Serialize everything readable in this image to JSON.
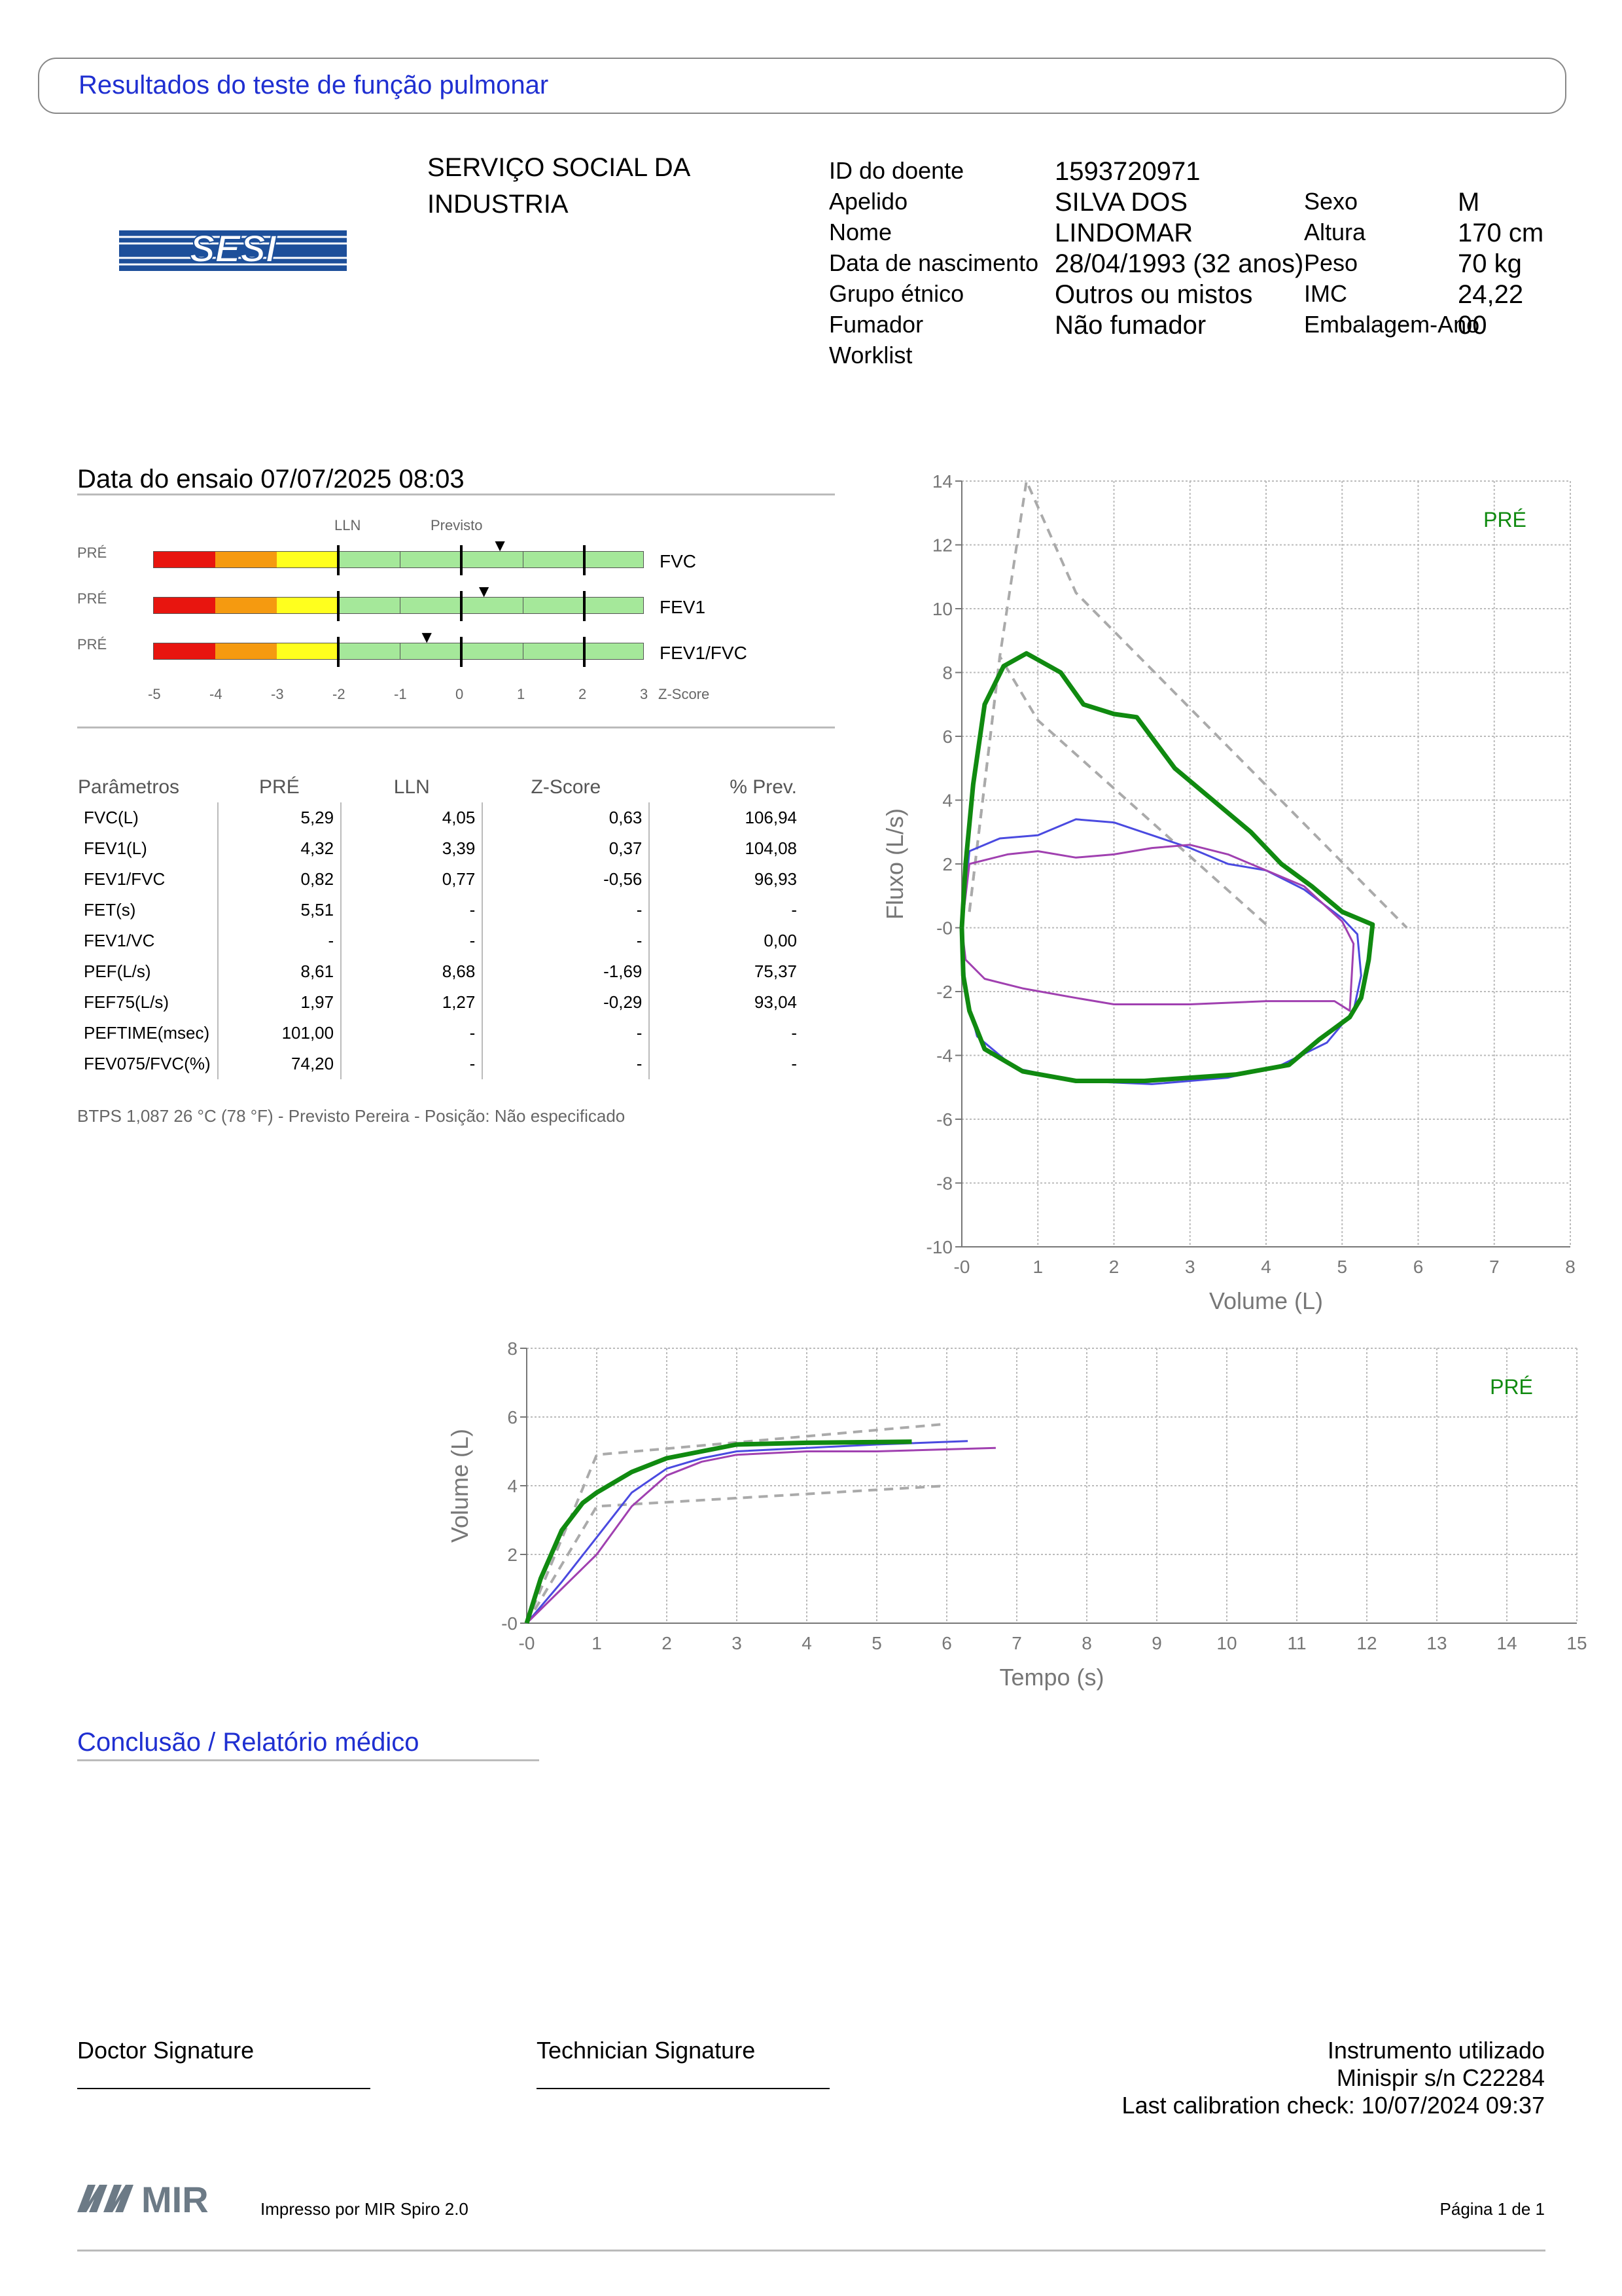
{
  "header": {
    "title": "Resultados do teste de função pulmonar"
  },
  "logo": {
    "text": "SESI",
    "color": "#1d4f9a"
  },
  "organization": {
    "line1": "SERVIÇO SOCIAL DA",
    "line2": "INDUSTRIA"
  },
  "patient": {
    "id_label": "ID do doente",
    "id": "1593720971",
    "surname_label": "Apelido",
    "surname": "SILVA DOS",
    "name_label": "Nome",
    "name": "LINDOMAR",
    "dob_label": "Data de nascimento",
    "dob": "28/04/1993 (32 anos)",
    "ethnic_label": "Grupo étnico",
    "ethnic": "Outros ou mistos",
    "smoker_label": "Fumador",
    "smoker": "Não fumador",
    "worklist_label": "Worklist",
    "sex_label": "Sexo",
    "sex": "M",
    "height_label": "Altura",
    "height": "170 cm",
    "weight_label": "Peso",
    "weight": "70 kg",
    "bmi_label": "IMC",
    "bmi": "24,22",
    "packyears_label": "Embalagem-Ano",
    "packyears": "00"
  },
  "test": {
    "date_label": "Data do ensaio 07/07/2025 08:03"
  },
  "zscore": {
    "lln_label": "LLN",
    "pred_label": "Previsto",
    "axis_label": "Z-Score",
    "ticks": [
      "-5",
      "-4",
      "-3",
      "-2",
      "-1",
      "0",
      "1",
      "2",
      "3"
    ],
    "bars": [
      {
        "tag": "PRÉ",
        "name": "FVC",
        "z": 0.63
      },
      {
        "tag": "PRÉ",
        "name": "FEV1",
        "z": 0.37
      },
      {
        "tag": "PRÉ",
        "name": "FEV1/FVC",
        "z": -0.56
      }
    ],
    "colors": {
      "red": "#e8150f",
      "orange": "#f59a10",
      "yellow": "#ffff1e",
      "green": "#a5e89a"
    }
  },
  "params": {
    "headers": [
      "Parâmetros",
      "PRÉ",
      "LLN",
      "Z-Score",
      "% Prev."
    ],
    "rows": [
      [
        "FVC(L)",
        "5,29",
        "4,05",
        "0,63",
        "106,94"
      ],
      [
        "FEV1(L)",
        "4,32",
        "3,39",
        "0,37",
        "104,08"
      ],
      [
        "FEV1/FVC",
        "0,82",
        "0,77",
        "-0,56",
        "96,93"
      ],
      [
        "FET(s)",
        "5,51",
        "-",
        "-",
        "-"
      ],
      [
        "FEV1/VC",
        "-",
        "-",
        "-",
        "0,00"
      ],
      [
        "PEF(L/s)",
        "8,61",
        "8,68",
        "-1,69",
        "75,37"
      ],
      [
        "FEF75(L/s)",
        "1,97",
        "1,27",
        "-0,29",
        "93,04"
      ],
      [
        "PEFTIME(msec)",
        "101,00",
        "-",
        "-",
        "-"
      ],
      [
        "FEV075/FVC(%)",
        "74,20",
        "-",
        "-",
        "-"
      ]
    ],
    "note": "BTPS 1,087 26 °C (78 °F) - Previsto Pereira - Posição: Não especificado"
  },
  "chart_data": [
    {
      "type": "line",
      "title": "",
      "tag": "PRÉ",
      "xlabel": "Volume (L)",
      "ylabel": "Fluxo (L/s)",
      "xlim": [
        0,
        8
      ],
      "ylim": [
        -10,
        14
      ],
      "xticks": [
        "-0",
        "1",
        "2",
        "3",
        "4",
        "5",
        "6",
        "7",
        "8"
      ],
      "yticks": [
        "14",
        "12",
        "10",
        "8",
        "6",
        "4",
        "2",
        "-0",
        "-2",
        "-4",
        "-6",
        "-8",
        "-10"
      ],
      "grid": true,
      "series": [
        {
          "color": "#aaaaaa",
          "dashed": true,
          "points": [
            [
              0.1,
              0.5
            ],
            [
              0.5,
              8.5
            ],
            [
              0.85,
              14
            ],
            [
              1.5,
              10.5
            ],
            [
              5.85,
              0
            ]
          ]
        },
        {
          "color": "#aaaaaa",
          "dashed": true,
          "points": [
            [
              0.1,
              0.5
            ],
            [
              0.5,
              8.5
            ],
            [
              1,
              6.5
            ],
            [
              4.05,
              0
            ]
          ]
        },
        {
          "color": "#4a4ae0",
          "points": [
            [
              0,
              0
            ],
            [
              0.1,
              2.4
            ],
            [
              0.5,
              2.8
            ],
            [
              1,
              2.9
            ],
            [
              1.5,
              3.4
            ],
            [
              2,
              3.3
            ],
            [
              2.5,
              2.9
            ],
            [
              3,
              2.5
            ],
            [
              3.5,
              2
            ],
            [
              4,
              1.8
            ],
            [
              4.5,
              1.2
            ],
            [
              5,
              0.3
            ],
            [
              5.2,
              -0.2
            ],
            [
              5.25,
              -1.5
            ],
            [
              5.15,
              -2.6
            ],
            [
              4.8,
              -3.6
            ],
            [
              4.2,
              -4.3
            ],
            [
              3.5,
              -4.7
            ],
            [
              2.5,
              -4.9
            ],
            [
              1.5,
              -4.8
            ],
            [
              0.7,
              -4.4
            ],
            [
              0.2,
              -3.4
            ],
            [
              0.05,
              -2
            ],
            [
              0,
              0
            ]
          ]
        },
        {
          "color": "#a040b0",
          "points": [
            [
              0,
              0
            ],
            [
              0.1,
              2
            ],
            [
              0.6,
              2.3
            ],
            [
              1,
              2.4
            ],
            [
              1.5,
              2.2
            ],
            [
              2,
              2.3
            ],
            [
              2.5,
              2.5
            ],
            [
              3,
              2.6
            ],
            [
              3.5,
              2.3
            ],
            [
              4,
              1.8
            ],
            [
              4.5,
              1.3
            ],
            [
              5,
              0.2
            ],
            [
              5.15,
              -0.5
            ],
            [
              5.1,
              -2.6
            ],
            [
              4.9,
              -2.3
            ],
            [
              4,
              -2.3
            ],
            [
              3,
              -2.4
            ],
            [
              2,
              -2.4
            ],
            [
              1.5,
              -2.2
            ],
            [
              0.8,
              -1.9
            ],
            [
              0.3,
              -1.6
            ],
            [
              0.05,
              -1
            ],
            [
              0,
              0
            ]
          ]
        },
        {
          "color": "#108a10",
          "width": 3,
          "points": [
            [
              0,
              0
            ],
            [
              0.05,
              2
            ],
            [
              0.15,
              4.5
            ],
            [
              0.3,
              7
            ],
            [
              0.55,
              8.2
            ],
            [
              0.85,
              8.6
            ],
            [
              1,
              8.4
            ],
            [
              1.3,
              8
            ],
            [
              1.6,
              7
            ],
            [
              2,
              6.7
            ],
            [
              2.3,
              6.6
            ],
            [
              2.8,
              5
            ],
            [
              3.3,
              4
            ],
            [
              3.8,
              3
            ],
            [
              4.2,
              2
            ],
            [
              4.6,
              1.3
            ],
            [
              5,
              0.5
            ],
            [
              5.4,
              0.1
            ],
            [
              5.35,
              -1
            ],
            [
              5.25,
              -2.2
            ],
            [
              5.1,
              -2.8
            ],
            [
              4.7,
              -3.5
            ],
            [
              4.3,
              -4.3
            ],
            [
              3.6,
              -4.6
            ],
            [
              3,
              -4.7
            ],
            [
              2.4,
              -4.8
            ],
            [
              1.5,
              -4.8
            ],
            [
              0.8,
              -4.5
            ],
            [
              0.3,
              -3.8
            ],
            [
              0.1,
              -2.6
            ],
            [
              0.02,
              -1.5
            ],
            [
              0,
              0
            ]
          ]
        }
      ]
    },
    {
      "type": "line",
      "title": "",
      "tag": "PRÉ",
      "xlabel": "Tempo (s)",
      "ylabel": "Volume (L)",
      "xlim": [
        0,
        15
      ],
      "ylim": [
        0,
        8
      ],
      "xticks": [
        "-0",
        "1",
        "2",
        "3",
        "4",
        "5",
        "6",
        "7",
        "8",
        "9",
        "10",
        "11",
        "12",
        "13",
        "14",
        "15"
      ],
      "yticks": [
        "8",
        "6",
        "4",
        "2",
        "-0"
      ],
      "grid": true,
      "series": [
        {
          "color": "#aaaaaa",
          "dashed": true,
          "points": [
            [
              0,
              0
            ],
            [
              1,
              4.9
            ],
            [
              6,
              5.8
            ]
          ]
        },
        {
          "color": "#aaaaaa",
          "dashed": true,
          "points": [
            [
              0,
              0
            ],
            [
              1,
              3.4
            ],
            [
              6,
              4
            ]
          ]
        },
        {
          "color": "#4a4ae0",
          "points": [
            [
              0,
              0
            ],
            [
              0.5,
              1.2
            ],
            [
              1,
              2.5
            ],
            [
              1.5,
              3.8
            ],
            [
              2,
              4.5
            ],
            [
              2.5,
              4.8
            ],
            [
              3,
              5
            ],
            [
              4,
              5.1
            ],
            [
              5,
              5.2
            ],
            [
              6.3,
              5.3
            ]
          ]
        },
        {
          "color": "#a040b0",
          "points": [
            [
              0,
              0
            ],
            [
              0.5,
              1
            ],
            [
              1,
              2
            ],
            [
              1.5,
              3.4
            ],
            [
              2,
              4.3
            ],
            [
              2.5,
              4.7
            ],
            [
              3,
              4.9
            ],
            [
              4,
              5
            ],
            [
              5,
              5
            ],
            [
              6.7,
              5.1
            ]
          ]
        },
        {
          "color": "#108a10",
          "width": 3,
          "points": [
            [
              0,
              0
            ],
            [
              0.2,
              1.3
            ],
            [
              0.5,
              2.7
            ],
            [
              0.8,
              3.5
            ],
            [
              1,
              3.8
            ],
            [
              1.5,
              4.4
            ],
            [
              2,
              4.8
            ],
            [
              2.5,
              5
            ],
            [
              3,
              5.2
            ],
            [
              4,
              5.25
            ],
            [
              5.5,
              5.28
            ]
          ]
        }
      ]
    }
  ],
  "conclusion": {
    "title": "Conclusão / Relatório médico"
  },
  "signatures": {
    "doctor": "Doctor Signature",
    "technician": "Technician Signature"
  },
  "instrument": {
    "label": "Instrumento utilizado",
    "model": "Minispir s/n C22284",
    "calibration": "Last calibration check: 10/07/2024 09:37"
  },
  "footer": {
    "brand": "MIR",
    "printed": "Impresso por MIR Spiro 2.0",
    "page": "Página 1 de 1"
  }
}
